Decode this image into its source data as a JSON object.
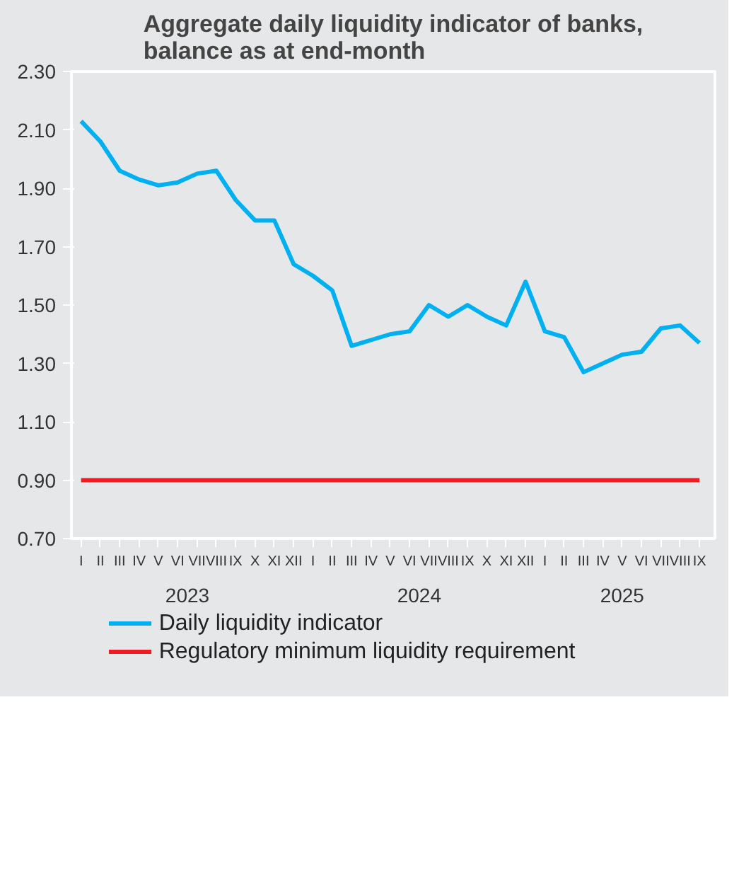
{
  "chart_data": {
    "type": "line",
    "title": "Aggregate daily liquidity indicator of banks,\nbalance as at end-month",
    "categories": [
      "I",
      "II",
      "III",
      "IV",
      "V",
      "VI",
      "VII",
      "VIII",
      "IX",
      "X",
      "XI",
      "XII",
      "I",
      "II",
      "III",
      "IV",
      "V",
      "VI",
      "VII",
      "VIII",
      "IX",
      "X",
      "XI",
      "XII",
      "I",
      "II",
      "III",
      "IV",
      "V",
      "VI",
      "VII",
      "VIII",
      "IX"
    ],
    "annotations": [
      "2023",
      "2024",
      "2025"
    ],
    "series": [
      {
        "name": "Daily liquidity indicator",
        "color": "#00b0f0",
        "values": [
          2.13,
          2.06,
          1.96,
          1.93,
          1.91,
          1.92,
          1.95,
          1.96,
          1.86,
          1.79,
          1.79,
          1.64,
          1.6,
          1.55,
          1.36,
          1.38,
          1.4,
          1.41,
          1.5,
          1.46,
          1.5,
          1.46,
          1.43,
          1.58,
          1.41,
          1.39,
          1.27,
          1.3,
          1.33,
          1.34,
          1.42,
          1.43,
          1.37
        ]
      },
      {
        "name": "Regulatory minimum liquidity requirement",
        "color": "#ed1c24",
        "values": [
          0.9,
          0.9,
          0.9,
          0.9,
          0.9,
          0.9,
          0.9,
          0.9,
          0.9,
          0.9,
          0.9,
          0.9,
          0.9,
          0.9,
          0.9,
          0.9,
          0.9,
          0.9,
          0.9,
          0.9,
          0.9,
          0.9,
          0.9,
          0.9,
          0.9,
          0.9,
          0.9,
          0.9,
          0.9,
          0.9,
          0.9,
          0.9,
          0.9
        ]
      }
    ],
    "ylim": [
      0.7,
      2.3
    ],
    "yticks": [
      {
        "value": 0.7,
        "label": "0.70"
      },
      {
        "value": 0.9,
        "label": "0.90"
      },
      {
        "value": 1.1,
        "label": "1.10"
      },
      {
        "value": 1.3,
        "label": "1.30"
      },
      {
        "value": 1.5,
        "label": "1.50"
      },
      {
        "value": 1.7,
        "label": "1.70"
      },
      {
        "value": 1.9,
        "label": "1.90"
      },
      {
        "value": 2.1,
        "label": "2.10"
      },
      {
        "value": 2.3,
        "label": "2.30"
      }
    ],
    "grid": false,
    "legend": "bottom",
    "line_style": "solid",
    "marker": "none"
  }
}
